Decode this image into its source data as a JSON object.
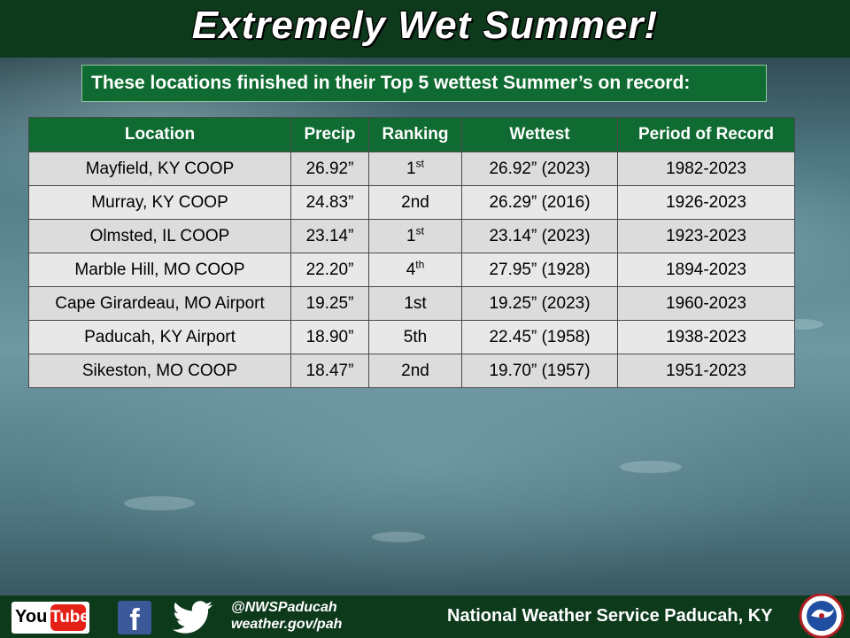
{
  "header": {
    "title": "Extremely Wet Summer!",
    "subtitle": "These locations finished in their Top 5 wettest Summer’s on record:"
  },
  "table": {
    "columns": [
      "Location",
      "Precip",
      "Ranking",
      "Wettest",
      "Period of Record"
    ],
    "rows": [
      {
        "location": "Mayfield, KY COOP",
        "precip": "26.92”",
        "rank_num": "1",
        "rank_suffix": "st",
        "wettest": "26.92” (2023)",
        "period": "1982-2023"
      },
      {
        "location": "Murray, KY COOP",
        "precip": "24.83”",
        "rank_num": "2nd",
        "rank_suffix": "",
        "wettest": "26.29” (2016)",
        "period": "1926-2023"
      },
      {
        "location": "Olmsted, IL COOP",
        "precip": "23.14”",
        "rank_num": "1",
        "rank_suffix": "st",
        "wettest": "23.14” (2023)",
        "period": "1923-2023"
      },
      {
        "location": "Marble Hill, MO COOP",
        "precip": "22.20”",
        "rank_num": "4",
        "rank_suffix": "th",
        "wettest": "27.95” (1928)",
        "period": "1894-2023"
      },
      {
        "location": "Cape Girardeau, MO Airport",
        "precip": "19.25”",
        "rank_num": "1st",
        "rank_suffix": "",
        "wettest": "19.25” (2023)",
        "period": "1960-2023"
      },
      {
        "location": "Paducah, KY Airport",
        "precip": "18.90”",
        "rank_num": "5th",
        "rank_suffix": "",
        "wettest": "22.45” (1958)",
        "period": "1938-2023"
      },
      {
        "location": "Sikeston, MO COOP",
        "precip": "18.47”",
        "rank_num": "2nd",
        "rank_suffix": "",
        "wettest": "19.70” (1957)",
        "period": "1951-2023"
      }
    ]
  },
  "footer": {
    "youtube_you": "You",
    "youtube_tube": "Tube",
    "facebook_letter": "f",
    "twitter_icon": "twitter-bird-icon",
    "handle": "@NWSPaducah",
    "website": "weather.gov/pah",
    "office": "National Weather Service Paducah, KY",
    "logo_icon": "nws-logo-icon"
  },
  "colors": {
    "header_green": "#0e3a1c",
    "table_header_green": "#0f6b31",
    "row_gray": "#dcdcdc"
  }
}
